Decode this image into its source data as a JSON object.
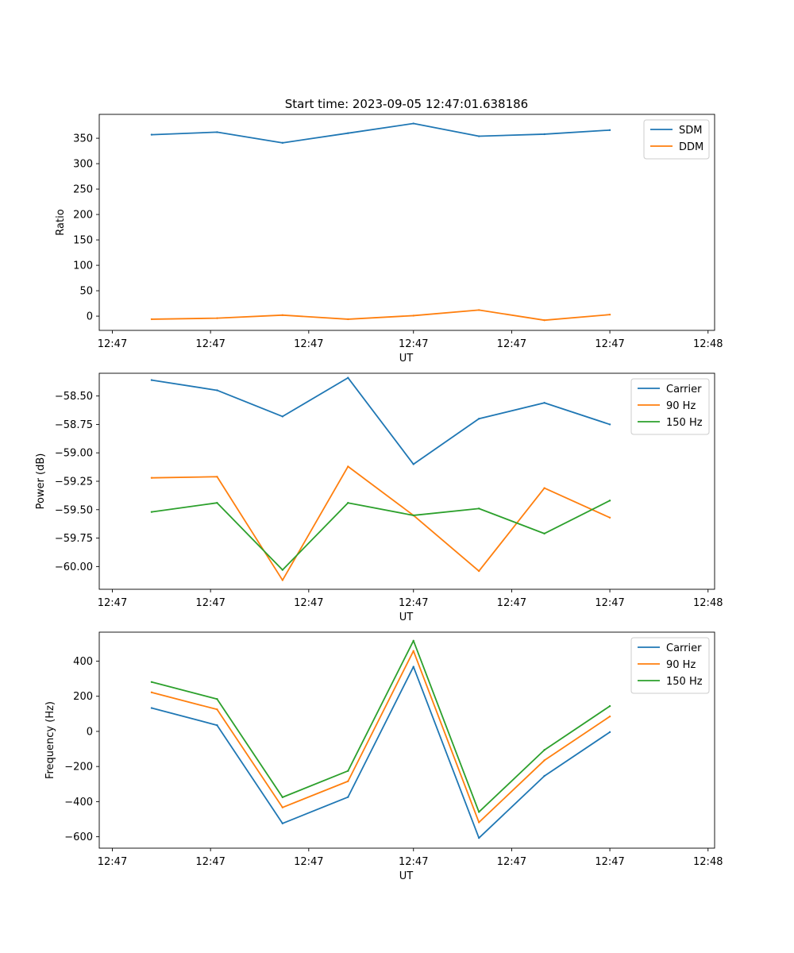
{
  "figure": {
    "title": "Start time: 2023-09-05 12:47:01.638186"
  },
  "chart_data": [
    {
      "type": "line",
      "title": "Start time: 2023-09-05 12:47:01.638186",
      "xlabel": "UT",
      "ylabel": "Ratio",
      "x": [
        1,
        2,
        3,
        4,
        5,
        6,
        7,
        8
      ],
      "xlim": [
        0.2,
        9.6
      ],
      "xticks": [
        0.4,
        1.9,
        3.4,
        5.0,
        6.5,
        8.0,
        9.5
      ],
      "xtick_labels": [
        "12:47",
        "12:47",
        "12:47",
        "12:47",
        "12:47",
        "12:47",
        "12:48"
      ],
      "ylim": [
        -28,
        397
      ],
      "yticks": [
        0,
        50,
        100,
        150,
        200,
        250,
        300,
        350
      ],
      "ytick_labels": [
        "0",
        "50",
        "100",
        "150",
        "200",
        "250",
        "300",
        "350"
      ],
      "legend_position": "top-right",
      "series": [
        {
          "name": "SDM",
          "color": "#1f77b4",
          "values": [
            357,
            362,
            341,
            360,
            379,
            354,
            358,
            366
          ]
        },
        {
          "name": "DDM",
          "color": "#ff7f0e",
          "values": [
            -6,
            -4,
            2,
            -6,
            1,
            12,
            -8,
            3
          ]
        }
      ]
    },
    {
      "type": "line",
      "title": "",
      "xlabel": "UT",
      "ylabel": "Power (dB)",
      "x": [
        1,
        2,
        3,
        4,
        5,
        6,
        7,
        8
      ],
      "xlim": [
        0.2,
        9.6
      ],
      "xticks": [
        0.4,
        1.9,
        3.4,
        5.0,
        6.5,
        8.0,
        9.5
      ],
      "xtick_labels": [
        "12:47",
        "12:47",
        "12:47",
        "12:47",
        "12:47",
        "12:47",
        "12:48"
      ],
      "ylim": [
        -60.2,
        -58.3
      ],
      "yticks": [
        -60.0,
        -59.75,
        -59.5,
        -59.25,
        -59.0,
        -58.75,
        -58.5
      ],
      "ytick_labels": [
        "−60.00",
        "−59.75",
        "−59.50",
        "−59.25",
        "−59.00",
        "−58.75",
        "−58.50"
      ],
      "legend_position": "top-right",
      "series": [
        {
          "name": "Carrier",
          "color": "#1f77b4",
          "values": [
            -58.36,
            -58.45,
            -58.68,
            -58.34,
            -59.1,
            -58.7,
            -58.56,
            -58.75
          ]
        },
        {
          "name": "90 Hz",
          "color": "#ff7f0e",
          "values": [
            -59.22,
            -59.21,
            -60.12,
            -59.12,
            -59.55,
            -60.04,
            -59.31,
            -59.57
          ]
        },
        {
          "name": "150 Hz",
          "color": "#2ca02c",
          "values": [
            -59.52,
            -59.44,
            -60.03,
            -59.44,
            -59.55,
            -59.49,
            -59.71,
            -59.42
          ]
        }
      ]
    },
    {
      "type": "line",
      "title": "",
      "xlabel": "UT",
      "ylabel": "Frequency (Hz)",
      "x": [
        1,
        2,
        3,
        4,
        5,
        6,
        7,
        8
      ],
      "xlim": [
        0.2,
        9.6
      ],
      "xticks": [
        0.4,
        1.9,
        3.4,
        5.0,
        6.5,
        8.0,
        9.5
      ],
      "xtick_labels": [
        "12:47",
        "12:47",
        "12:47",
        "12:47",
        "12:47",
        "12:47",
        "12:48"
      ],
      "ylim": [
        -665,
        565
      ],
      "yticks": [
        -600,
        -400,
        -200,
        0,
        200,
        400
      ],
      "ytick_labels": [
        "−600",
        "−400",
        "−200",
        "0",
        "200",
        "400"
      ],
      "legend_position": "top-right",
      "series": [
        {
          "name": "Carrier",
          "color": "#1f77b4",
          "values": [
            133,
            35,
            -524,
            -374,
            368,
            -607,
            -254,
            -4
          ]
        },
        {
          "name": "90 Hz",
          "color": "#ff7f0e",
          "values": [
            222,
            125,
            -433,
            -284,
            458,
            -518,
            -165,
            85
          ]
        },
        {
          "name": "150 Hz",
          "color": "#2ca02c",
          "values": [
            281,
            184,
            -375,
            -225,
            516,
            -459,
            -106,
            144
          ]
        }
      ]
    }
  ]
}
